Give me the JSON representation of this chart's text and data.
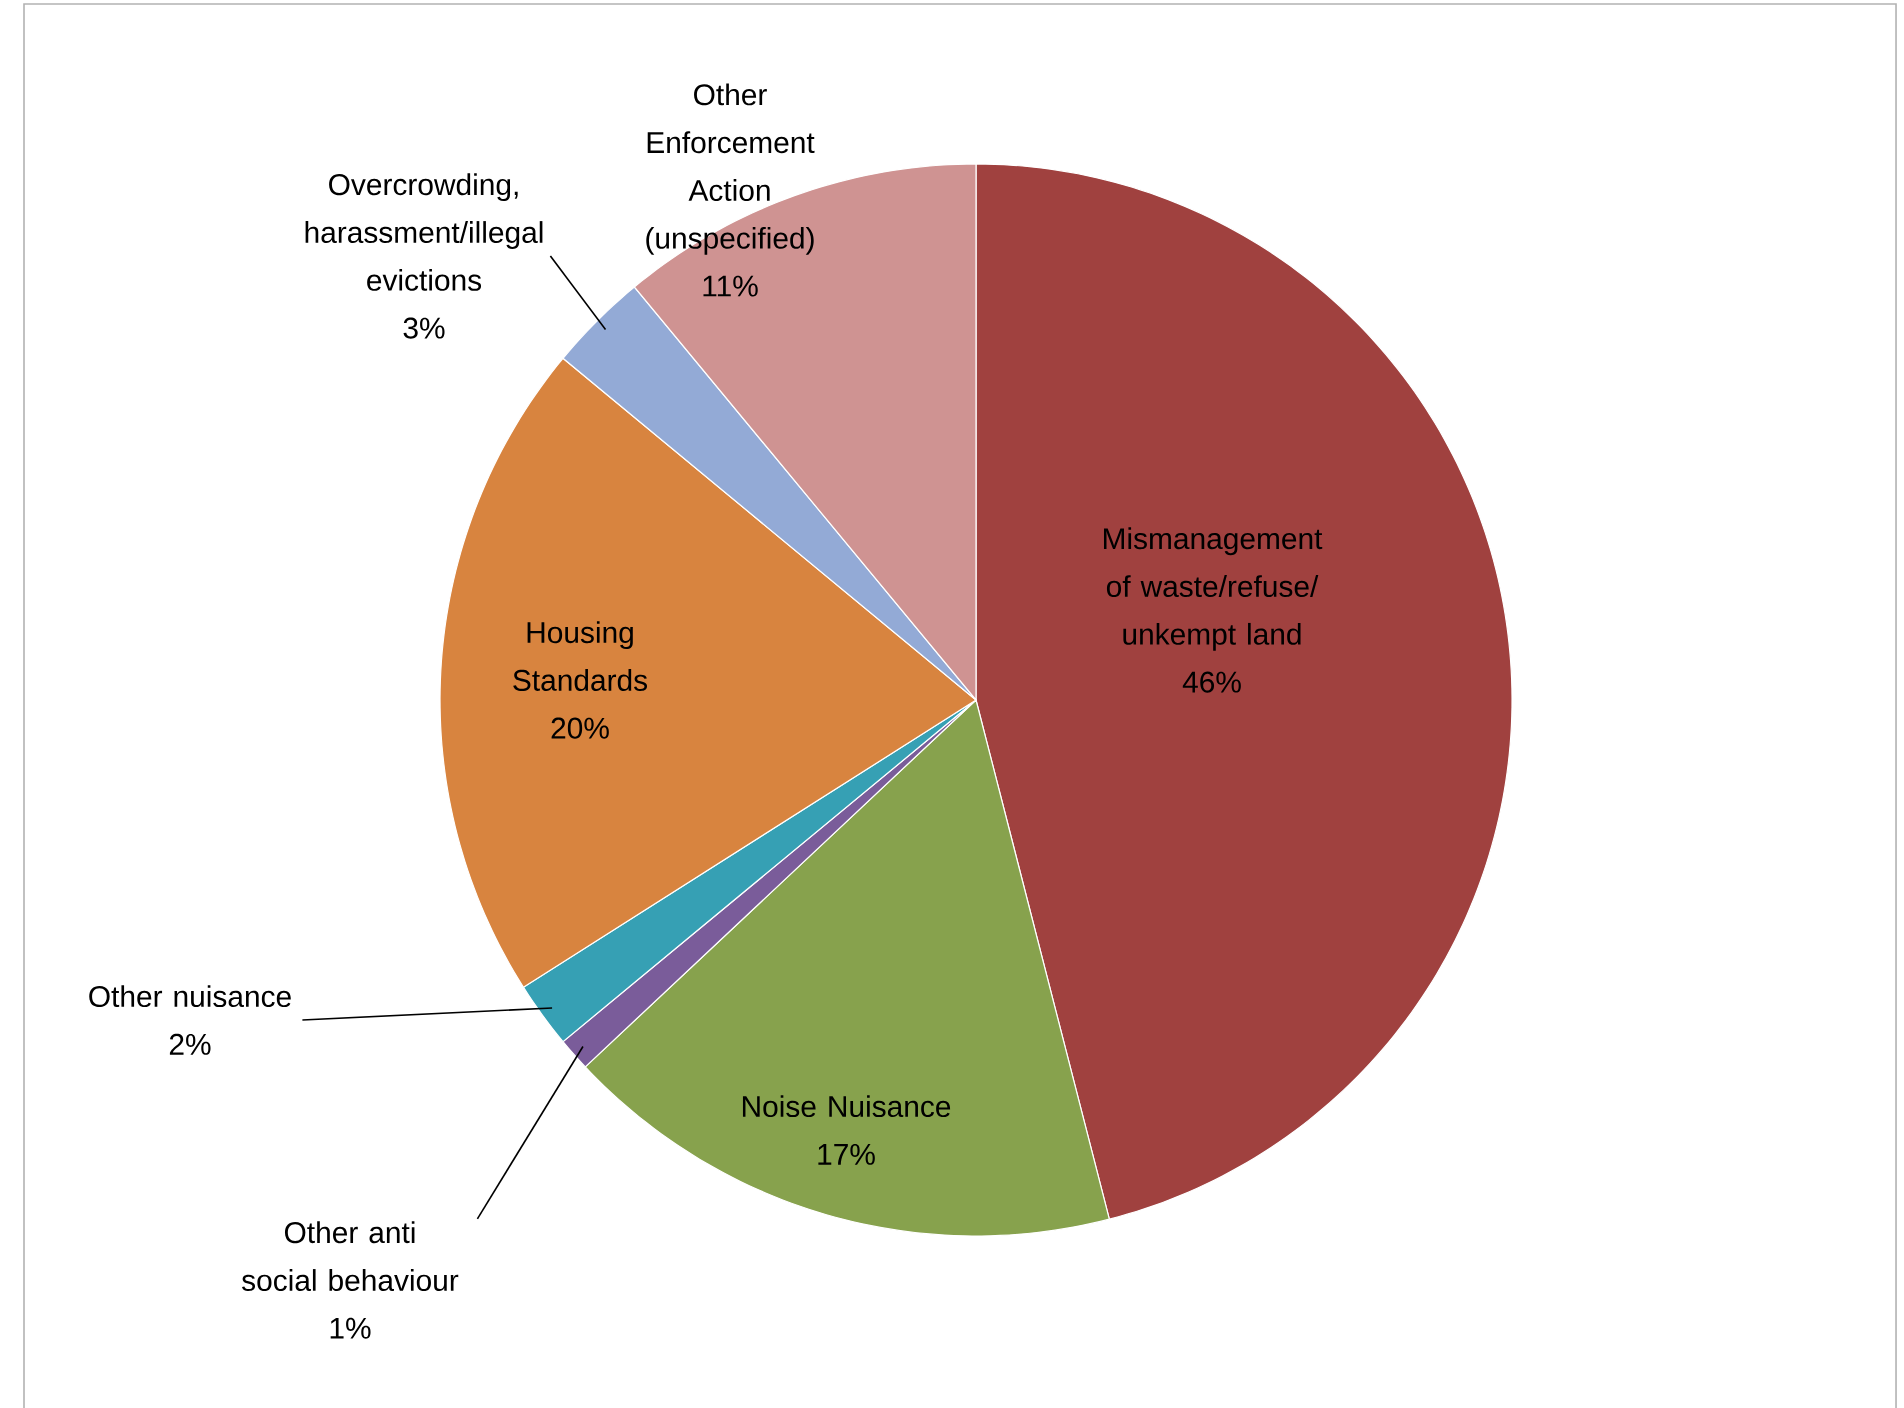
{
  "chart_data": {
    "type": "pie",
    "categories": [
      "Mismanagement of waste/refuse/ unkempt land",
      "Noise Nuisance",
      "Other anti social behaviour",
      "Other nuisance",
      "Housing Standards",
      "Overcrowding, harassment/illegal evictions",
      "Other Enforcement Action (unspecified)"
    ],
    "values": [
      46,
      17,
      1,
      2,
      20,
      3,
      11
    ],
    "value_labels": [
      "46%",
      "17%",
      "1%",
      "2%",
      "20%",
      "3%",
      "11%"
    ],
    "colors": [
      "#a0413f",
      "#87a24d",
      "#7a5c9a",
      "#36a0b4",
      "#d8843f",
      "#93aad6",
      "#cf9392"
    ]
  }
}
